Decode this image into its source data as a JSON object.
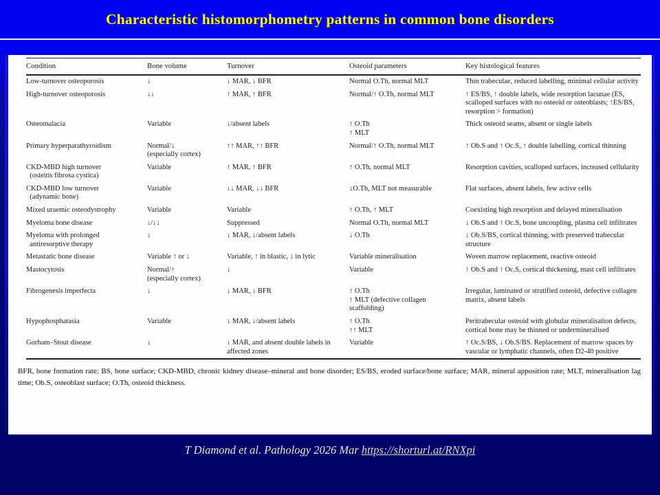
{
  "slide": {
    "title": "Characteristic histomorphometry patterns in common bone disorders"
  },
  "table": {
    "columns": [
      "Condition",
      "Bone volume",
      "Turnover",
      "Osteoid parameters",
      "Key histological features"
    ],
    "rows": [
      {
        "condition": "Low-turnover osteoporosis",
        "bone_volume": "↓",
        "turnover": "↓ MAR, ↓ BFR",
        "osteoid": "Normal O.Th, normal MLT",
        "features": "Thin trabeculae, reduced labelling, minimal cellular activity"
      },
      {
        "condition": "High-turnover osteoporosis",
        "bone_volume": "↓↓",
        "turnover": "↑ MAR, ↑ BFR",
        "osteoid": "Normal/↑ O.Th, normal MLT",
        "features": "↑ ES/BS, ↑ double labels, wide resorption lacunae (ES, scalloped surfaces with no osteoid or osteoblasts; ↑ES/BS, resorption > formation)"
      },
      {
        "condition": "Osteomalacia",
        "bone_volume": "Variable",
        "turnover": "↓/absent labels",
        "osteoid": "↑ O.Th\n↑ MLT",
        "features": "Thick osteoid seams, absent or single labels"
      },
      {
        "condition": "Primary hyperparathyroidism",
        "bone_volume": "Normal/↓\n(especially cortex)",
        "turnover": "↑↑ MAR, ↑↑ BFR",
        "osteoid": "Normal/↑ O.Th, normal MLT",
        "features": "↑ Ob.S and ↑ Oc.S, ↑ double labelling, cortical thinning"
      },
      {
        "condition": "CKD-MBD high turnover\n  (osteitis fibrosa cystica)",
        "bone_volume": "Variable",
        "turnover": "↑ MAR, ↑ BFR",
        "osteoid": "↑ O.Th, normal MLT",
        "features": "Resorption cavities, scalloped surfaces, increased cellularity"
      },
      {
        "condition": "CKD-MBD low turnover\n  (adynamic bone)",
        "bone_volume": "Variable",
        "turnover": "↓↓ MAR, ↓↓ BFR",
        "osteoid": "↓O.Th, MLT not measurable",
        "features": "Flat surfaces, absent labels, few active cells"
      },
      {
        "condition": "Mixed uraemic osteodystrophy",
        "bone_volume": "Variable",
        "turnover": "Variable",
        "osteoid": "↑ O.Th, ↑ MLT",
        "features": "Coexisting high resorption and delayed mineralisation"
      },
      {
        "condition": "Myeloma bone disease",
        "bone_volume": "↓/↓↓",
        "turnover": "Suppressed",
        "osteoid": "Normal O.Th, normal MLT",
        "features": "↓ Ob.S and ↑ Oc.S, bone uncoupling, plasma cell infiltrates"
      },
      {
        "condition": "Myeloma with prolonged\n  antiresorptive therapy",
        "bone_volume": "↓",
        "turnover": "↓ MAR, ↓/absent labels",
        "osteoid": "↓ O.Th",
        "features": "↓ Ob.S/BS, cortical thinning, with preserved trabecular structure"
      },
      {
        "condition": "Metastatic bone disease",
        "bone_volume": "Variable ↑ or ↓",
        "turnover": "Variable, ↑ in blastic, ↓ in lytic",
        "osteoid": "Variable mineralisation",
        "features": "Woven marrow replacement, reactive osteoid"
      },
      {
        "condition": "Mastocytosis",
        "bone_volume": "Normal/↑\n(especially cortex)",
        "turnover": "↓",
        "osteoid": "Variable",
        "features": "↑ Ob.S and ↑ Oc.S, cortical thickening, mast cell infiltrates"
      },
      {
        "condition": "Fibrogenesis imperfecta",
        "bone_volume": "↓",
        "turnover": "↓ MAR, ↓ BFR",
        "osteoid": "↑ O.Th\n↑ MLT (defective collagen scaffolding)",
        "features": "Irregular, laminated or stratified osteoid, defective collagen matrix, absent labels"
      },
      {
        "condition": "Hypophosphatasia",
        "bone_volume": "Variable",
        "turnover": "↓ MAR, ↓/absent labels",
        "osteoid": "↑ O.Th\n↑↑ MLT",
        "features": "Peritrabecular osteoid with globular mineralisation defects, cortical bone may be thinned or undermineralised"
      },
      {
        "condition": "Gorham–Stout disease",
        "bone_volume": "↓",
        "turnover": "↓ MAR, and absent double labels in affected zones",
        "osteoid": "Variable",
        "features": "↑ Oc.S/BS, ↓ Ob.S/BS. Replacement of marrow spaces by vascular or lymphatic channels, often D2-40 positive"
      }
    ],
    "footnote": "BFR, bone formation rate; BS, bone surface; CKD-MBD, chronic kidney disease–mineral and bone disorder; ES/BS, eroded surface/bone surface; MAR, mineral apposition rate; MLT, mineralisation lag time; Ob.S, osteoblast surface; O.Th, osteoid thickness."
  },
  "citation": {
    "text": "T Diamond et al. Pathology 2026 Mar ",
    "link_label": "https://shorturl.at/RNXpi"
  },
  "colors": {
    "background_top": "#0101f2",
    "background_bottom": "#000467",
    "title": "#ffff00",
    "card": "#fdfdfd",
    "link": "#d9d9ea"
  }
}
